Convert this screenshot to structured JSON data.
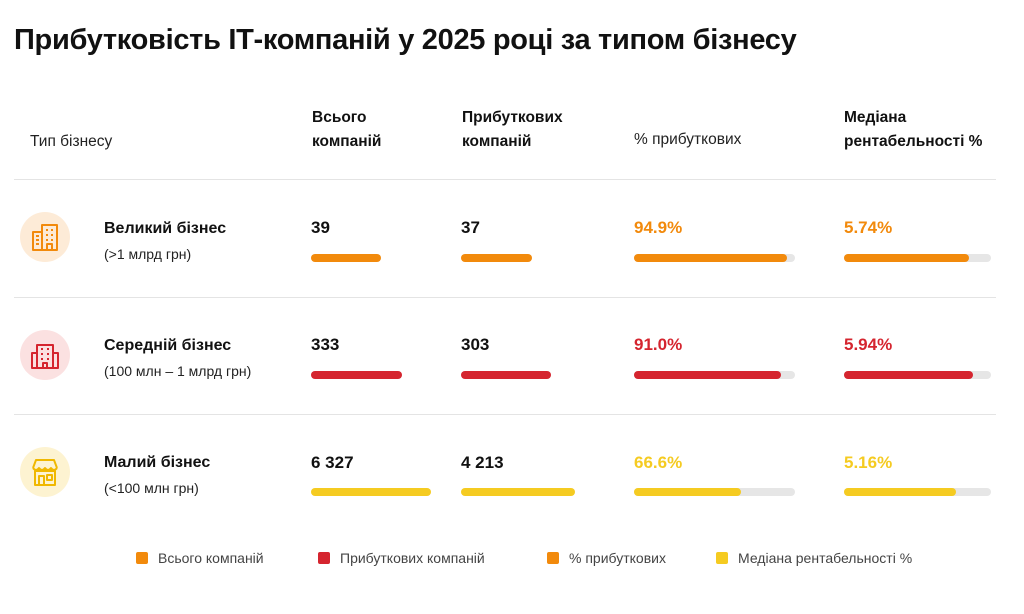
{
  "title": "Прибутковість ІТ-компаній у 2025 році за типом бізнесу",
  "headers": {
    "type": "Тип бізнесу",
    "total_line1": "Всього",
    "total_line2": "компаній",
    "profitable_line1": "Прибуткових",
    "profitable_line2": "компаній",
    "pct": "% прибуткових",
    "median_line1": "Медіана",
    "median_line2": "рентабельності %"
  },
  "colors": {
    "orange": "#F28A0C",
    "red": "#D5252F",
    "yellow": "#F5CB21",
    "track": "#E6E6E6"
  },
  "icons": [
    "buildings-icon",
    "office-building-icon",
    "shop-icon"
  ],
  "chart_data": {
    "type": "table",
    "title": "Прибутковість ІТ-компаній у 2025 році за типом бізнесу",
    "columns": [
      "Тип бізнесу",
      "Всього компаній",
      "Прибуткових компаній",
      "% прибуткових",
      "Медіана рентабельності %"
    ],
    "rows": [
      {
        "name": "Великий бізнес",
        "sub": "(>1 млрд грн)",
        "total": 39,
        "total_label": "39",
        "profitable": 37,
        "profitable_label": "37",
        "pct": 94.9,
        "pct_label": "94.9%",
        "median": 5.74,
        "median_label": "5.74%"
      },
      {
        "name": "Середній бізнес",
        "sub": "(100 млн – 1 млрд грн)",
        "total": 333,
        "total_label": "333",
        "profitable": 303,
        "profitable_label": "303",
        "pct": 91.0,
        "pct_label": "91.0%",
        "median": 5.94,
        "median_label": "5.94%"
      },
      {
        "name": "Малий бізнес",
        "sub": "(<100 млн грн)",
        "total": 6327,
        "total_label": "6 327",
        "profitable": 4213,
        "profitable_label": "4 213",
        "pct": 66.6,
        "pct_label": "66.6%",
        "median": 5.16,
        "median_label": "5.16%"
      }
    ],
    "legend": [
      "Всього компаній",
      "Прибуткових компаній",
      "% прибуткових",
      "Медіана рентабельності %"
    ],
    "legend_placement": "bottom"
  }
}
